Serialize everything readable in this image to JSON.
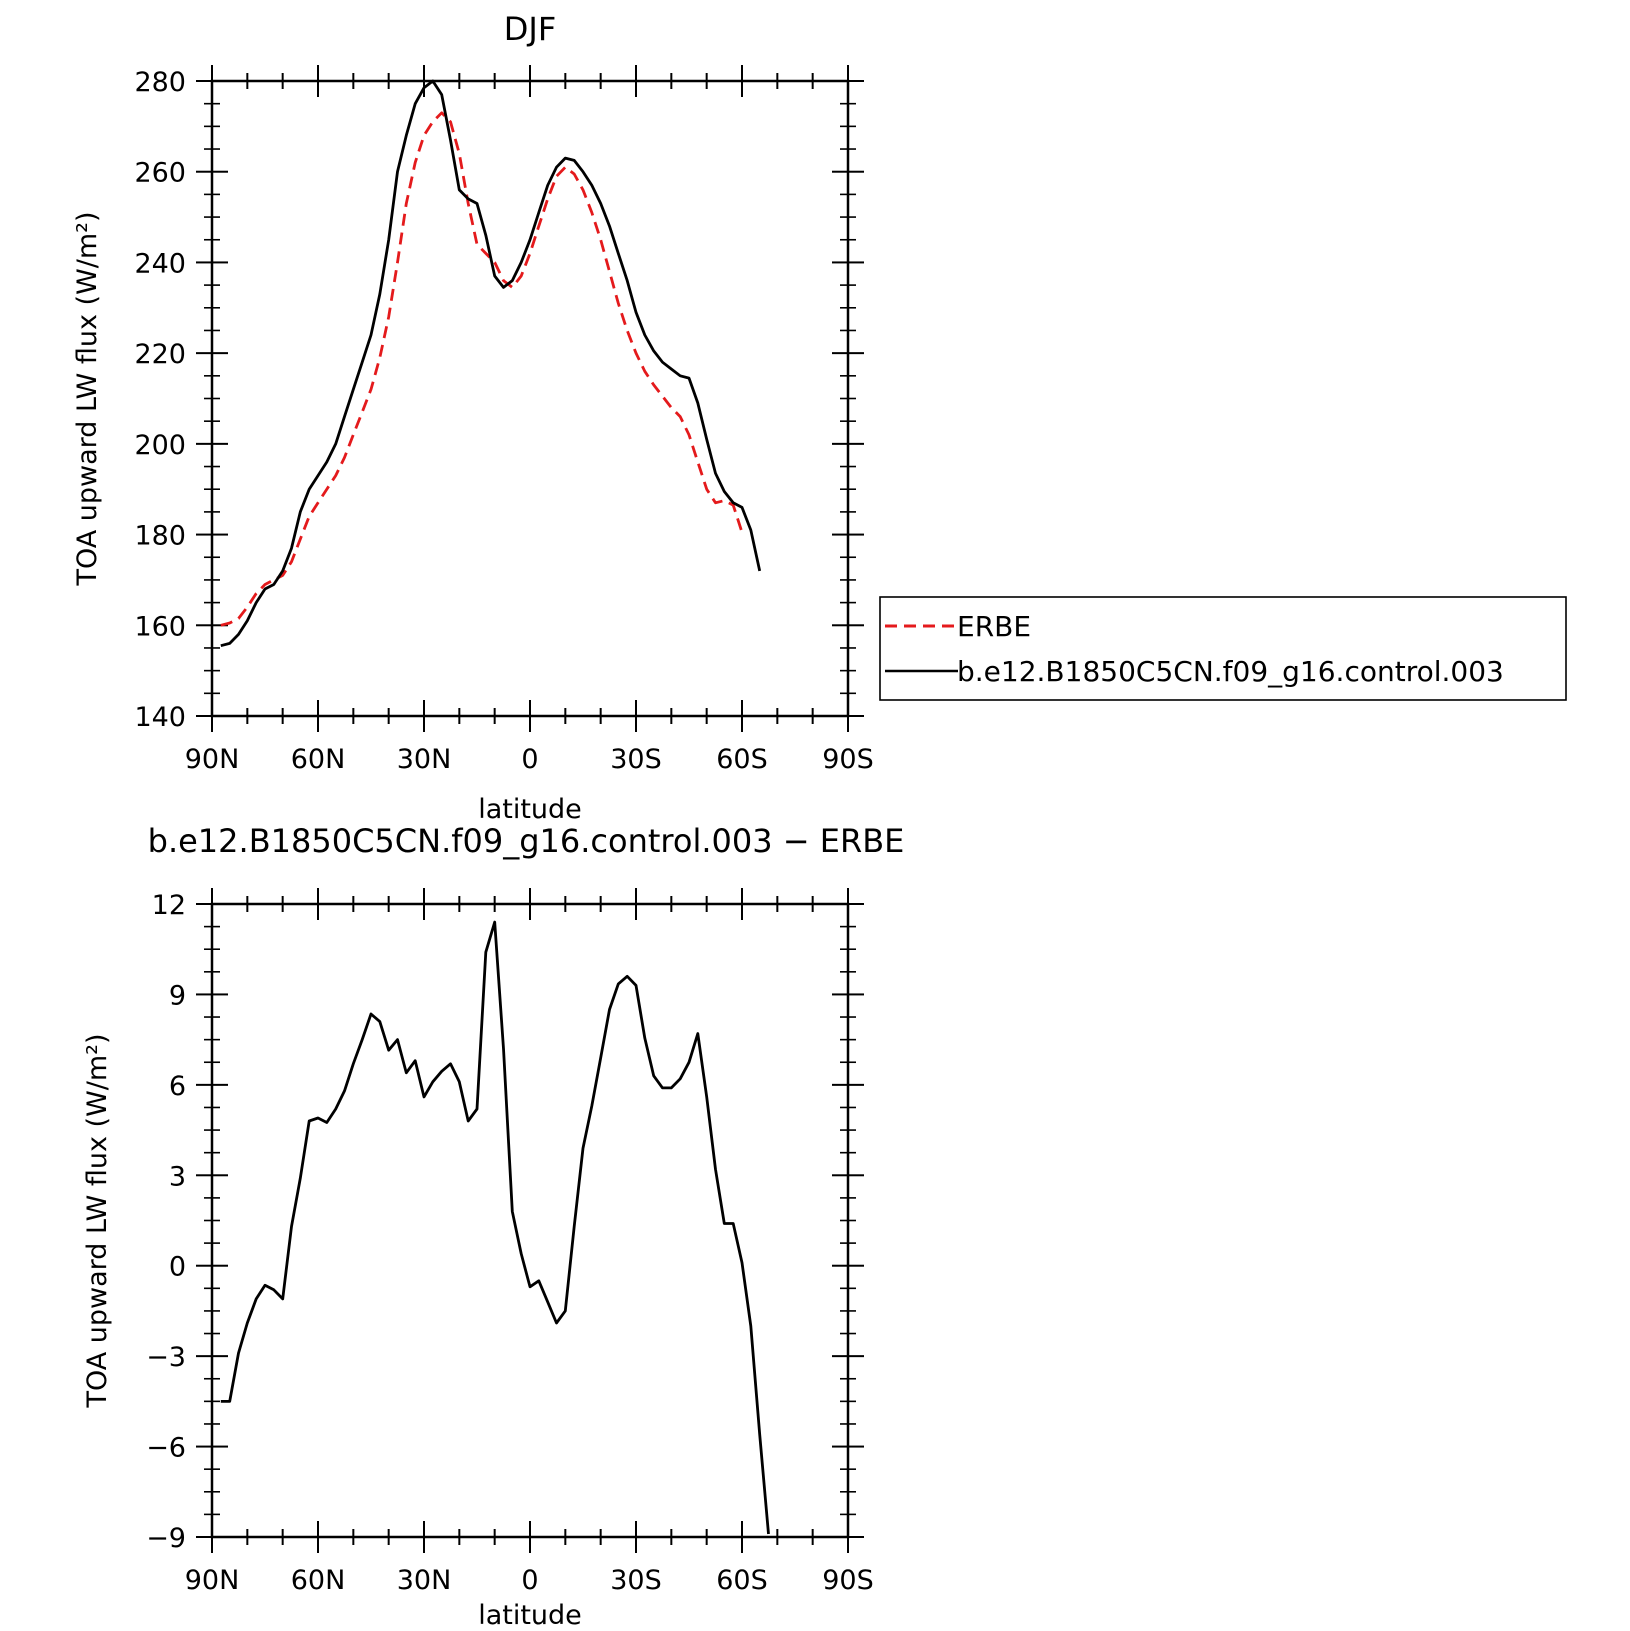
{
  "chart_data": [
    {
      "type": "line",
      "title": "DJF",
      "xlabel": "latitude",
      "ylabel": "TOA upward LW flux (W/m²)",
      "x_tick_labels": [
        "90N",
        "60N",
        "30N",
        "0",
        "30S",
        "60S",
        "90S"
      ],
      "xlim": [
        -90,
        90
      ],
      "ylim": [
        140,
        280
      ],
      "y_ticks": [
        140,
        160,
        180,
        200,
        220,
        240,
        260,
        280
      ],
      "y_tick_labels": [
        "140",
        "160",
        "180",
        "200",
        "220",
        "240",
        "260",
        "280"
      ],
      "grid": false,
      "legend_position": "right",
      "series": [
        {
          "name": "ERBE",
          "color": "#e41a1c",
          "style": "dashed",
          "points": [
            [
              -87.5,
              160
            ],
            [
              -85,
              160.5
            ],
            [
              -82.5,
              161.5
            ],
            [
              -80,
              164
            ],
            [
              -77.5,
              167
            ],
            [
              -75,
              169
            ],
            [
              -72.5,
              170
            ],
            [
              -70,
              171
            ],
            [
              -67.5,
              174
            ],
            [
              -65,
              179
            ],
            [
              -62.5,
              184
            ],
            [
              -60,
              187
            ],
            [
              -57.5,
              190
            ],
            [
              -55,
              193
            ],
            [
              -52.5,
              197
            ],
            [
              -50,
              202
            ],
            [
              -47.5,
              207
            ],
            [
              -45,
              212
            ],
            [
              -42.5,
              219
            ],
            [
              -40,
              228
            ],
            [
              -37.5,
              240
            ],
            [
              -35,
              253
            ],
            [
              -32.5,
              262
            ],
            [
              -30,
              268
            ],
            [
              -27.5,
              271
            ],
            [
              -25,
              273
            ],
            [
              -22.5,
              271
            ],
            [
              -20,
              264
            ],
            [
              -17.5,
              253
            ],
            [
              -15,
              244
            ],
            [
              -12.5,
              242
            ],
            [
              -10,
              240
            ],
            [
              -7.5,
              236
            ],
            [
              -5,
              234.5
            ],
            [
              -2.5,
              237
            ],
            [
              0,
              242
            ],
            [
              2.5,
              248
            ],
            [
              5,
              254
            ],
            [
              7.5,
              259
            ],
            [
              10,
              261
            ],
            [
              12.5,
              259.5
            ],
            [
              15,
              256
            ],
            [
              17.5,
              251
            ],
            [
              20,
              245
            ],
            [
              22.5,
              238
            ],
            [
              25,
              231
            ],
            [
              27.5,
              225
            ],
            [
              30,
              220
            ],
            [
              32.5,
              216
            ],
            [
              35,
              213
            ],
            [
              37.5,
              210.5
            ],
            [
              40,
              208
            ],
            [
              42.5,
              206
            ],
            [
              45,
              202
            ],
            [
              47.5,
              196
            ],
            [
              50,
              190
            ],
            [
              52.5,
              187
            ],
            [
              55,
              187.5
            ],
            [
              57.5,
              186.5
            ],
            [
              60,
              180.5
            ]
          ]
        },
        {
          "name": "b.e12.B1850C5CN.f09_g16.control.003",
          "color": "#000000",
          "style": "solid",
          "points": [
            [
              -87.5,
              155.5
            ],
            [
              -85,
              156
            ],
            [
              -82.5,
              158
            ],
            [
              -80,
              161
            ],
            [
              -77.5,
              165
            ],
            [
              -75,
              168
            ],
            [
              -72.5,
              169
            ],
            [
              -70,
              172
            ],
            [
              -67.5,
              177
            ],
            [
              -65,
              185
            ],
            [
              -62.5,
              190
            ],
            [
              -60,
              193
            ],
            [
              -57.5,
              196
            ],
            [
              -55,
              200
            ],
            [
              -52.5,
              206
            ],
            [
              -50,
              212
            ],
            [
              -47.5,
              218
            ],
            [
              -45,
              224
            ],
            [
              -42.5,
              233
            ],
            [
              -40,
              245
            ],
            [
              -37.5,
              260
            ],
            [
              -35,
              268
            ],
            [
              -32.5,
              275
            ],
            [
              -30,
              278.5
            ],
            [
              -27.5,
              280
            ],
            [
              -25,
              277
            ],
            [
              -22.5,
              267
            ],
            [
              -20,
              256
            ],
            [
              -17.5,
              254
            ],
            [
              -15,
              253
            ],
            [
              -12.5,
              246
            ],
            [
              -10,
              237
            ],
            [
              -7.5,
              234.5
            ],
            [
              -5,
              236
            ],
            [
              -2.5,
              240
            ],
            [
              0,
              245
            ],
            [
              2.5,
              251
            ],
            [
              5,
              257
            ],
            [
              7.5,
              261
            ],
            [
              10,
              263
            ],
            [
              12.5,
              262.5
            ],
            [
              15,
              260
            ],
            [
              17.5,
              257
            ],
            [
              20,
              253
            ],
            [
              22.5,
              248
            ],
            [
              25,
              242
            ],
            [
              27.5,
              236
            ],
            [
              30,
              229
            ],
            [
              32.5,
              224
            ],
            [
              35,
              220.5
            ],
            [
              37.5,
              218
            ],
            [
              40,
              216.5
            ],
            [
              42.5,
              215
            ],
            [
              45,
              214.5
            ],
            [
              47.5,
              209
            ],
            [
              50,
              201
            ],
            [
              52.5,
              193.5
            ],
            [
              55,
              189.5
            ],
            [
              57.5,
              187
            ],
            [
              60,
              186
            ],
            [
              62.5,
              181
            ],
            [
              65,
              172
            ]
          ]
        }
      ]
    },
    {
      "type": "line",
      "title": "b.e12.B1850C5CN.f09_g16.control.003 − ERBE",
      "xlabel": "latitude",
      "ylabel": "TOA upward LW flux (W/m²)",
      "x_tick_labels": [
        "90N",
        "60N",
        "30N",
        "0",
        "30S",
        "60S",
        "90S"
      ],
      "xlim": [
        -90,
        90
      ],
      "ylim": [
        -9,
        12
      ],
      "y_ticks": [
        -9,
        -6,
        -3,
        0,
        3,
        6,
        9,
        12
      ],
      "y_tick_labels": [
        "−9",
        "−6",
        "−3",
        "0",
        "3",
        "6",
        "9",
        "12"
      ],
      "grid": false,
      "series": [
        {
          "color": "#000000",
          "style": "solid",
          "points": [
            [
              -87.5,
              -4.5
            ],
            [
              -85,
              -4.5
            ],
            [
              -82.5,
              -2.9
            ],
            [
              -80,
              -1.9
            ],
            [
              -77.5,
              -1.1
            ],
            [
              -75,
              -0.65
            ],
            [
              -72.5,
              -0.8
            ],
            [
              -70,
              -1.1
            ],
            [
              -67.5,
              1.3
            ],
            [
              -65,
              2.9
            ],
            [
              -62.5,
              4.8
            ],
            [
              -60,
              4.9
            ],
            [
              -57.5,
              4.75
            ],
            [
              -55,
              5.2
            ],
            [
              -52.5,
              5.8
            ],
            [
              -50,
              6.7
            ],
            [
              -47.5,
              7.5
            ],
            [
              -45,
              8.35
            ],
            [
              -42.5,
              8.1
            ],
            [
              -40,
              7.15
            ],
            [
              -37.5,
              7.5
            ],
            [
              -35,
              6.4
            ],
            [
              -32.5,
              6.8
            ],
            [
              -30,
              5.6
            ],
            [
              -27.5,
              6.1
            ],
            [
              -25,
              6.45
            ],
            [
              -22.5,
              6.7
            ],
            [
              -20,
              6.1
            ],
            [
              -17.5,
              4.8
            ],
            [
              -15,
              5.2
            ],
            [
              -12.5,
              10.4
            ],
            [
              -10,
              11.4
            ],
            [
              -7.5,
              7.2
            ],
            [
              -5,
              1.8
            ],
            [
              -2.5,
              0.4
            ],
            [
              0,
              -0.7
            ],
            [
              2.5,
              -0.5
            ],
            [
              5,
              -1.2
            ],
            [
              7.5,
              -1.9
            ],
            [
              10,
              -1.5
            ],
            [
              12.5,
              1.3
            ],
            [
              15,
              3.9
            ],
            [
              17.5,
              5.3
            ],
            [
              20,
              6.9
            ],
            [
              22.5,
              8.5
            ],
            [
              25,
              9.35
            ],
            [
              27.5,
              9.6
            ],
            [
              30,
              9.3
            ],
            [
              32.5,
              7.55
            ],
            [
              35,
              6.3
            ],
            [
              37.5,
              5.9
            ],
            [
              40,
              5.9
            ],
            [
              42.5,
              6.2
            ],
            [
              45,
              6.75
            ],
            [
              47.5,
              7.7
            ],
            [
              50,
              5.6
            ],
            [
              52.5,
              3.2
            ],
            [
              55,
              1.4
            ],
            [
              57.5,
              1.4
            ],
            [
              60,
              0.1
            ],
            [
              62.5,
              -2.0
            ],
            [
              65,
              -5.6
            ],
            [
              67.5,
              -8.9
            ]
          ]
        }
      ]
    }
  ]
}
